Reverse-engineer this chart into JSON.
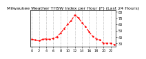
{
  "title": "Milwaukee Weather THSW Index per Hour (F) (Last 24 Hours)",
  "hours": [
    0,
    1,
    2,
    3,
    4,
    5,
    6,
    7,
    8,
    9,
    10,
    11,
    12,
    13,
    14,
    15,
    16,
    17,
    18,
    19,
    20,
    21,
    22,
    23
  ],
  "values": [
    36,
    35,
    34,
    36,
    37,
    36,
    38,
    40,
    46,
    53,
    60,
    66,
    75,
    70,
    63,
    56,
    48,
    41,
    37,
    35,
    30,
    30,
    30,
    28
  ],
  "line_color": "#ff0000",
  "marker": "o",
  "marker_size": 1.5,
  "line_style": "--",
  "line_width": 0.8,
  "background_color": "#ffffff",
  "grid_color": "#999999",
  "ylim": [
    25,
    82
  ],
  "yticks": [
    30,
    40,
    50,
    60,
    70,
    80
  ],
  "ytick_labels": [
    "30",
    "40",
    "50",
    "60",
    "70",
    "80"
  ],
  "title_fontsize": 4.5,
  "tick_fontsize": 3.5
}
